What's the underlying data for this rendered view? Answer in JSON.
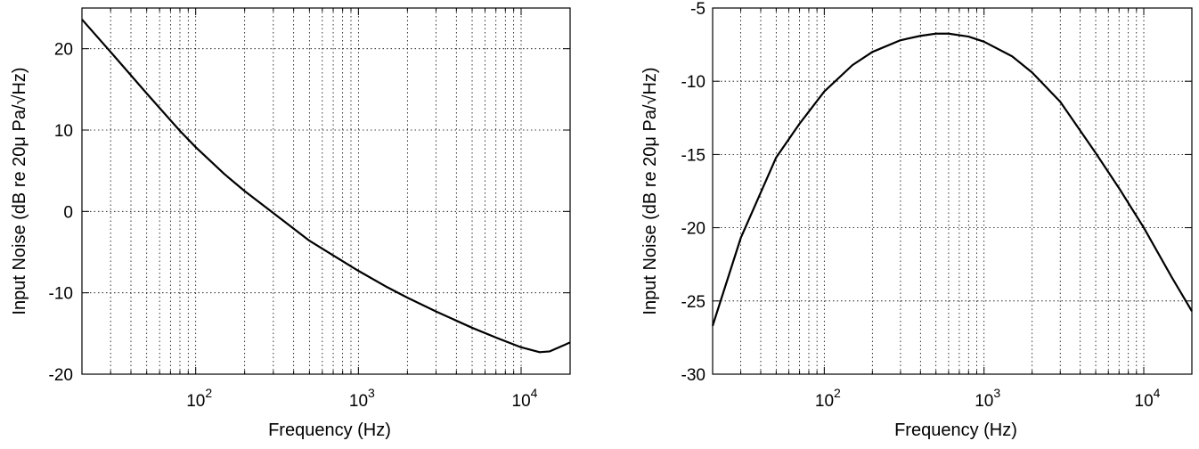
{
  "chart_data": [
    {
      "type": "line",
      "xscale": "log",
      "xlim": [
        20,
        20000
      ],
      "ylim": [
        -20,
        25
      ],
      "grid": true,
      "xlabel": "Frequency (Hz)",
      "ylabel": "Input Noise (dB re 20μ Pa/√Hz)",
      "xticks": [
        {
          "base": "10",
          "exp": "2",
          "value": 100
        },
        {
          "base": "10",
          "exp": "3",
          "value": 1000
        },
        {
          "base": "10",
          "exp": "4",
          "value": 10000
        }
      ],
      "yticks": [
        {
          "label": "20",
          "value": 20
        },
        {
          "label": "10",
          "value": 10
        },
        {
          "label": "0",
          "value": 0
        },
        {
          "label": "-10",
          "value": -10
        },
        {
          "label": "-20",
          "value": -20
        }
      ],
      "series": [
        {
          "x": [
            20,
            30,
            50,
            80,
            100,
            150,
            200,
            300,
            500,
            700,
            1000,
            1500,
            2000,
            3000,
            5000,
            7000,
            10000,
            13000,
            15000,
            20000
          ],
          "y": [
            23.6,
            19.6,
            14.5,
            9.9,
            7.9,
            4.6,
            2.5,
            -0.2,
            -3.6,
            -5.4,
            -7.3,
            -9.3,
            -10.6,
            -12.3,
            -14.3,
            -15.5,
            -16.7,
            -17.3,
            -17.2,
            -16.1
          ]
        }
      ]
    },
    {
      "type": "line",
      "xscale": "log",
      "xlim": [
        20,
        20000
      ],
      "ylim": [
        -30,
        -5
      ],
      "grid": true,
      "xlabel": "Frequency (Hz)",
      "ylabel": "Input Noise (dB re 20μ Pa/√Hz)",
      "xticks": [
        {
          "base": "10",
          "exp": "2",
          "value": 100
        },
        {
          "base": "10",
          "exp": "3",
          "value": 1000
        },
        {
          "base": "10",
          "exp": "4",
          "value": 10000
        }
      ],
      "yticks": [
        {
          "label": "-5",
          "value": -5
        },
        {
          "label": "-10",
          "value": -10
        },
        {
          "label": "-15",
          "value": -15
        },
        {
          "label": "-20",
          "value": -20
        },
        {
          "label": "-25",
          "value": -25
        },
        {
          "label": "-30",
          "value": -30
        }
      ],
      "series": [
        {
          "x": [
            20,
            30,
            50,
            70,
            100,
            150,
            200,
            300,
            400,
            500,
            600,
            800,
            1000,
            1500,
            2000,
            3000,
            5000,
            7000,
            10000,
            15000,
            20000
          ],
          "y": [
            -26.7,
            -20.7,
            -15.2,
            -12.9,
            -10.7,
            -8.9,
            -8.0,
            -7.2,
            -6.9,
            -6.75,
            -6.75,
            -6.95,
            -7.3,
            -8.3,
            -9.4,
            -11.4,
            -14.9,
            -17.3,
            -20.0,
            -23.4,
            -25.7
          ]
        }
      ]
    }
  ]
}
